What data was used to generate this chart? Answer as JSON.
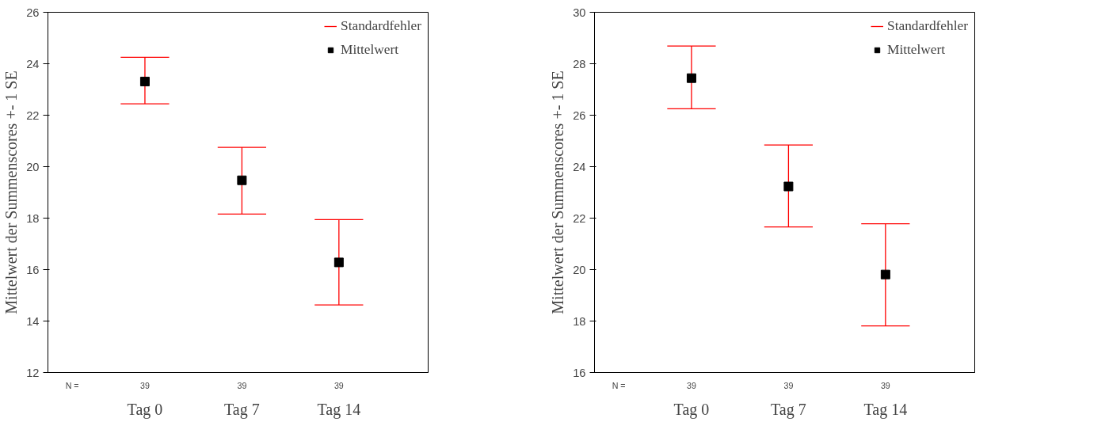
{
  "chart_data": [
    {
      "type": "scatter",
      "ylabel": "Mittelwert der Summenscores +- 1 SE",
      "categories": [
        "Tag 0",
        "Tag 7",
        "Tag 14"
      ],
      "ylim": [
        12,
        26
      ],
      "yticks": [
        12,
        14,
        16,
        18,
        20,
        22,
        24,
        26
      ],
      "grid": false,
      "legend": "top right",
      "marker": "square",
      "series": [
        {
          "name": "Mittelwert",
          "color": "#000000",
          "values": [
            23.31,
            19.47,
            16.28
          ],
          "errors": [
            [
              22.44,
              24.25
            ],
            [
              18.16,
              20.75
            ],
            [
              14.63,
              17.94
            ]
          ]
        }
      ],
      "annotations": [
        "N =",
        "Standardfehler",
        "39",
        "39",
        "39"
      ]
    },
    {
      "type": "scatter",
      "ylabel": "Mittelwert der Summenscores +- 1 SE",
      "categories": [
        "Tag 0",
        "Tag 7",
        "Tag 14"
      ],
      "ylim": [
        16,
        30
      ],
      "yticks": [
        16,
        18,
        20,
        22,
        24,
        26,
        28,
        30
      ],
      "grid": false,
      "legend": "top right",
      "marker": "square",
      "series": [
        {
          "name": "Mittelwert",
          "color": "#000000",
          "values": [
            27.44,
            23.23,
            19.81
          ],
          "errors": [
            [
              26.25,
              28.69
            ],
            [
              21.66,
              24.84
            ],
            [
              17.81,
              21.78
            ]
          ]
        }
      ],
      "annotations": [
        "N =",
        "Standardfehler",
        "39",
        "39",
        "39"
      ]
    }
  ]
}
